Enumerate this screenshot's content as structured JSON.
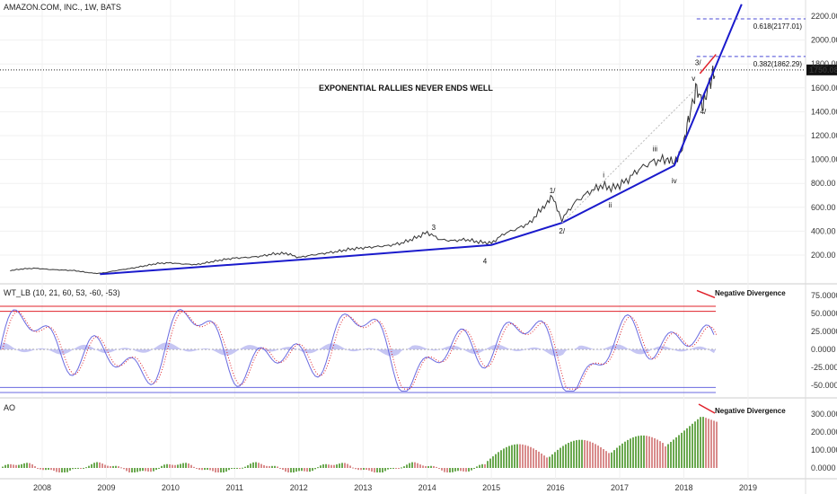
{
  "header": {
    "symbol_title": "AMAZON.COM, INC., 1W, BATS",
    "headline": "EXPONENTIAL RALLIES NEVER ENDS WELL"
  },
  "colors": {
    "price": "#333333",
    "trendline": "#1a1acc",
    "fib": "#4a4ad6",
    "divergence": "#e0202a",
    "wt_fill": "#b8b8f0",
    "wt_line1": "#6a6ae0",
    "wt_line2": "#e0202a",
    "ao_up": "#6aa84f",
    "ao_down": "#d98c8c",
    "current_price_bg": "#111111"
  },
  "chart_data": [
    {
      "id": "price",
      "type": "line",
      "title": "AMAZON.COM, INC., 1W, BATS",
      "x_unit": "year",
      "x_ticks": [
        "2008",
        "2009",
        "2010",
        "2011",
        "2012",
        "2013",
        "2014",
        "2015",
        "2016",
        "2017",
        "2018",
        "2019"
      ],
      "ylim": [
        0,
        2300
      ],
      "y_ticks": [
        "200.00",
        "400.00",
        "600.00",
        "800.00",
        "1000.00",
        "1200.00",
        "1400.00",
        "1600.00",
        "1800.00",
        "2000.00",
        "2200.00"
      ],
      "y_tick_values": [
        200,
        400,
        600,
        800,
        1000,
        1200,
        1400,
        1600,
        1800,
        2000,
        2200
      ],
      "series": [
        {
          "values_x": [
            2007.5,
            2007.7,
            2007.9,
            2008.1,
            2008.3,
            2008.5,
            2008.7,
            2008.85,
            2009.0,
            2009.2,
            2009.4,
            2009.6,
            2009.8,
            2010.0,
            2010.2,
            2010.4,
            2010.6,
            2010.8,
            2011.0,
            2011.2,
            2011.4,
            2011.6,
            2011.8,
            2012.0,
            2012.2,
            2012.4,
            2012.6,
            2012.8,
            2013.0,
            2013.2,
            2013.4,
            2013.6,
            2013.8,
            2014.0,
            2014.2,
            2014.4,
            2014.6,
            2014.8,
            2015.0,
            2015.2,
            2015.4,
            2015.6,
            2015.8,
            2015.95,
            2016.1,
            2016.3,
            2016.5,
            2016.7,
            2016.9,
            2017.1,
            2017.3,
            2017.5,
            2017.7,
            2017.85,
            2018.0,
            2018.1,
            2018.2,
            2018.3,
            2018.4,
            2018.5
          ],
          "values_y": [
            70,
            85,
            90,
            80,
            75,
            70,
            55,
            45,
            55,
            75,
            90,
            110,
            130,
            135,
            125,
            120,
            140,
            160,
            175,
            180,
            190,
            210,
            215,
            180,
            200,
            215,
            230,
            250,
            260,
            270,
            280,
            300,
            340,
            390,
            330,
            320,
            330,
            310,
            300,
            380,
            420,
            470,
            600,
            680,
            500,
            640,
            720,
            780,
            760,
            820,
            920,
            980,
            1000,
            960,
            1150,
            1400,
            1600,
            1450,
            1650,
            1750
          ]
        }
      ],
      "current_price": "1750.08",
      "fib_levels": [
        {
          "label": "0.618(2177.01)",
          "value": 2177.01
        },
        {
          "label": "0.382(1862.29)",
          "value": 1862.29
        }
      ],
      "wave_labels": [
        "3",
        "4",
        "1/",
        "2/",
        "i",
        "ii",
        "iii",
        "iv",
        "v",
        "3/",
        "4/"
      ],
      "annotations": [
        "EXPONENTIAL RALLIES NEVER ENDS WELL"
      ]
    },
    {
      "id": "wt",
      "type": "line",
      "title": "WT_LB (10, 21, 60, 53, -60, -53)",
      "ylim": [
        -70,
        90
      ],
      "y_ticks": [
        "75.0000",
        "50.0000",
        "25.0000",
        "0.0000",
        "-25.0000",
        "-50.0000"
      ],
      "y_tick_values": [
        75,
        50,
        25,
        0,
        -25,
        -50
      ],
      "levels": [
        60,
        53,
        -60,
        -53
      ],
      "annotation": "Negative Divergence"
    },
    {
      "id": "ao",
      "type": "bar",
      "title": "AO",
      "ylim": [
        -40,
        360
      ],
      "y_ticks": [
        "300.0000",
        "200.0000",
        "100.0000",
        "0.0000"
      ],
      "y_tick_values": [
        300,
        200,
        100,
        0
      ],
      "annotation": "Negative Divergence"
    }
  ]
}
